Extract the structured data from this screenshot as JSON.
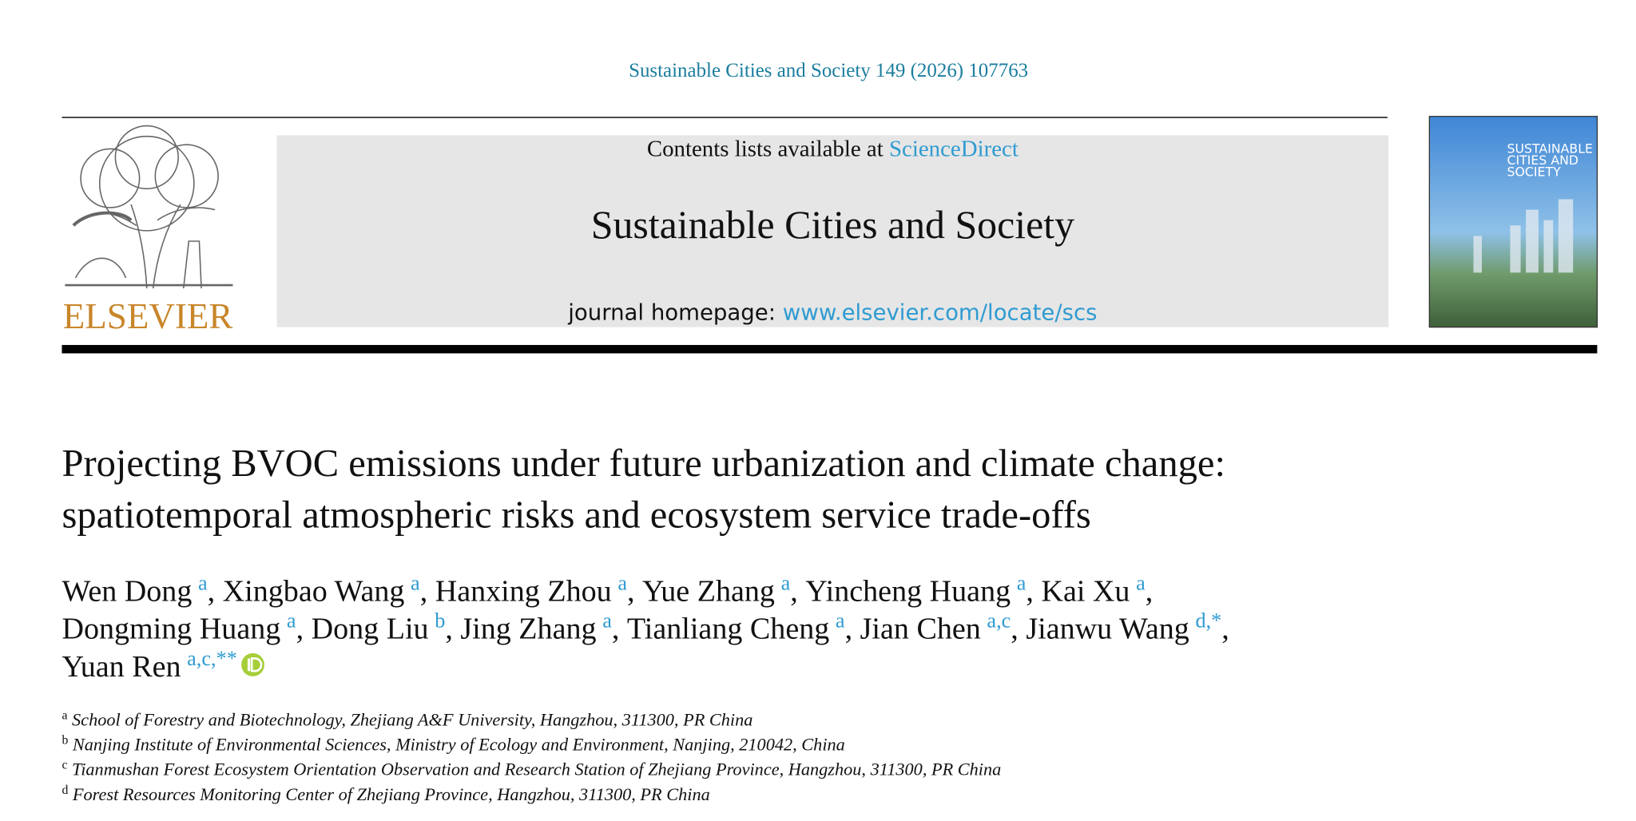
{
  "header": {
    "citation": "Sustainable Cities and Society 149 (2026) 107763",
    "contents_prefix": "Contents lists available at",
    "contents_link": "ScienceDirect",
    "journal": "Sustainable Cities and Society",
    "homepage_prefix": "journal homepage:",
    "homepage_url": "www.elsevier.com/locate/scs",
    "publisher": "ELSEVIER",
    "cover_title": [
      "SUSTAINABLE",
      "CITIES AND",
      "SOCIETY"
    ]
  },
  "article": {
    "title_lines": [
      "Projecting BVOC emissions under future urbanization and climate change:",
      "spatiotemporal atmospheric risks and ecosystem service trade-offs"
    ],
    "authors": [
      {
        "name": "Wen Dong",
        "affil": "a",
        "after": ","
      },
      {
        "name": "Xingbao Wang",
        "affil": "a",
        "after": ","
      },
      {
        "name": "Hanxing Zhou",
        "affil": "a",
        "after": ","
      },
      {
        "name": "Yue Zhang",
        "affil": "a",
        "after": ","
      },
      {
        "name": "Yincheng Huang",
        "affil": "a",
        "after": ","
      },
      {
        "name": "Kai Xu",
        "affil": "a",
        "after": ","
      },
      {
        "name": "Dongming Huang",
        "affil": "a",
        "after": ","
      },
      {
        "name": "Dong Liu",
        "affil": "b",
        "after": ","
      },
      {
        "name": "Jing Zhang",
        "affil": "a",
        "after": ","
      },
      {
        "name": "Tianliang Cheng",
        "affil": "a",
        "after": ","
      },
      {
        "name": "Jian Chen",
        "affil": "a,c",
        "after": ","
      },
      {
        "name": "Jianwu Wang",
        "affil": "d,*",
        "after": ","
      },
      {
        "name": "Yuan Ren",
        "affil": "a,c,**"
      }
    ],
    "affiliations": [
      {
        "label": "a",
        "text": "School of Forestry and Biotechnology, Zhejiang A&F University, Hangzhou, 311300, PR China"
      },
      {
        "label": "b",
        "text": "Nanjing Institute of Environmental Sciences, Ministry of Ecology and Environment, Nanjing, 210042, China"
      },
      {
        "label": "c",
        "text": "Tianmushan Forest Ecosystem Orientation Observation and Research Station of Zhejiang Province, Hangzhou, 311300, PR China"
      },
      {
        "label": "d",
        "text": "Forest Resources Monitoring Center of Zhejiang Province, Hangzhou, 311300, PR China"
      }
    ]
  }
}
